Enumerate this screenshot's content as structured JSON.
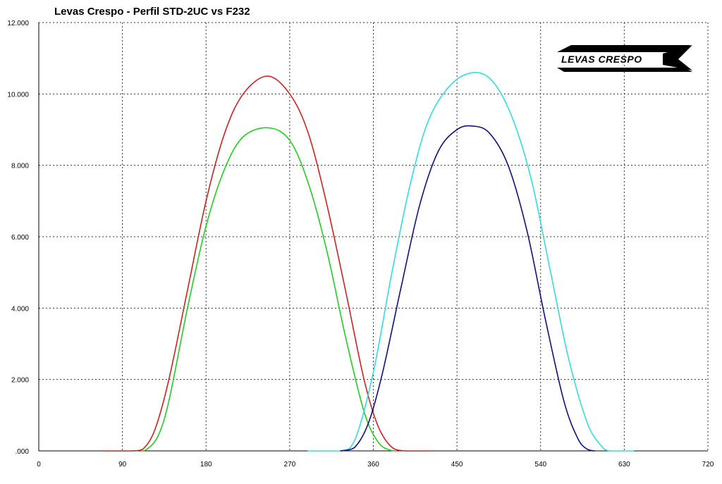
{
  "chart_data": {
    "type": "line",
    "title": "Levas Crespo - Perfil STD-2UC vs F232",
    "xlabel": "",
    "ylabel": "",
    "xlim": [
      0,
      720
    ],
    "ylim": [
      0,
      12
    ],
    "x_ticks": [
      0,
      90,
      180,
      270,
      360,
      450,
      540,
      630,
      720
    ],
    "x_tick_labels": [
      "0",
      "90",
      "180",
      "270",
      "360",
      "450",
      "540",
      "630",
      "720"
    ],
    "y_ticks": [
      0,
      2,
      4,
      6,
      8,
      10,
      12
    ],
    "y_tick_labels": [
      ".000",
      "2.000",
      "4.000",
      "6.000",
      "8.000",
      "10.000",
      "12.000"
    ],
    "grid": true,
    "grid_style": "dotted",
    "logo": "LEVAS CRESPO",
    "series": [
      {
        "color": "#cc2222",
        "x": [
          70,
          100,
          112,
          125,
          140,
          160,
          180,
          200,
          220,
          246,
          270,
          290,
          310,
          330,
          350,
          365,
          380,
          395,
          420
        ],
        "y": [
          0,
          0,
          0.05,
          0.6,
          2.0,
          4.5,
          7.0,
          8.9,
          10.0,
          10.5,
          10.0,
          8.9,
          6.9,
          4.5,
          2.0,
          0.7,
          0.1,
          0,
          0
        ]
      },
      {
        "color": "#22cc22",
        "x": [
          110,
          115,
          128,
          140,
          160,
          180,
          200,
          220,
          247,
          270,
          290,
          310,
          330,
          350,
          365,
          378,
          385
        ],
        "y": [
          0,
          0.02,
          0.4,
          1.4,
          4.0,
          6.3,
          7.9,
          8.8,
          9.05,
          8.7,
          7.5,
          5.6,
          3.2,
          1.1,
          0.25,
          0.02,
          0
        ]
      },
      {
        "color": "#33dddd",
        "x": [
          290,
          325,
          340,
          360,
          380,
          400,
          420,
          445,
          470,
          490,
          510,
          530,
          550,
          570,
          590,
          605,
          615,
          640
        ],
        "y": [
          0,
          0,
          0.3,
          2.2,
          5.0,
          7.5,
          9.3,
          10.3,
          10.6,
          10.3,
          9.3,
          7.6,
          5.1,
          2.6,
          0.8,
          0.15,
          0,
          0
        ]
      },
      {
        "color": "#111177",
        "x": [
          325,
          340,
          355,
          370,
          390,
          410,
          430,
          450,
          467,
          485,
          505,
          525,
          545,
          565,
          580,
          590,
          598
        ],
        "y": [
          0,
          0.1,
          0.8,
          2.2,
          4.6,
          6.9,
          8.4,
          9.0,
          9.1,
          8.9,
          8.0,
          6.2,
          3.7,
          1.4,
          0.35,
          0.05,
          0
        ]
      }
    ]
  }
}
